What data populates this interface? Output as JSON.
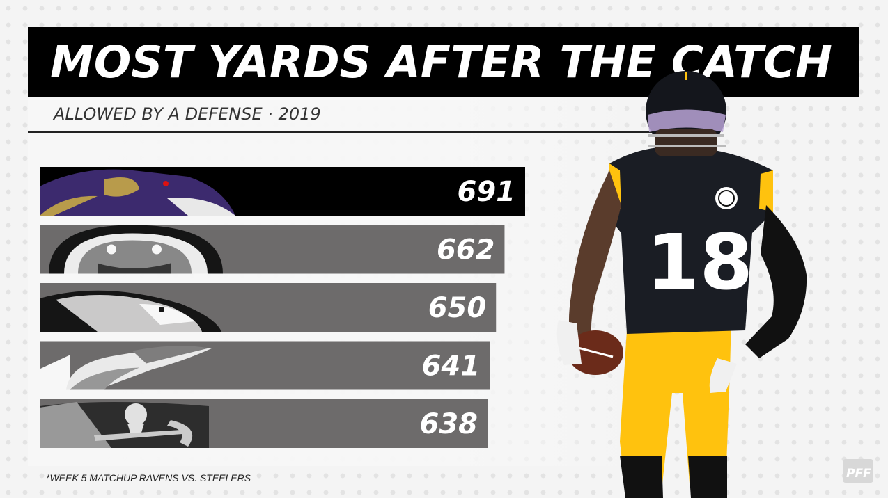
{
  "title": "MOST YARDS AFTER THE CATCH",
  "subtitle": "ALLOWED BY A DEFENSE · 2019",
  "footnote": "*WEEK 5 MATCHUP RAVENS VS. STEELERS",
  "brand": "PFF",
  "player": {
    "jersey_number": "18"
  },
  "colors": {
    "highlight": "#000000",
    "bar": "#6d6b6b",
    "accent": "#ffc20e"
  },
  "chart_data": {
    "type": "bar",
    "orientation": "horizontal",
    "categories": [
      "Ravens",
      "Bengals",
      "Eagles",
      "Dolphins",
      "Buccaneers"
    ],
    "values": [
      691,
      662,
      650,
      641,
      638
    ],
    "labels": [
      "691",
      "662",
      "650",
      "641",
      "638"
    ],
    "logos": [
      "ravens-logo-icon",
      "bengals-logo-icon",
      "eagles-logo-icon",
      "dolphins-logo-icon",
      "buccaneers-logo-icon"
    ],
    "highlight_index": 0,
    "title": "MOST YARDS AFTER THE CATCH",
    "subtitle": "ALLOWED BY A DEFENSE · 2019"
  }
}
